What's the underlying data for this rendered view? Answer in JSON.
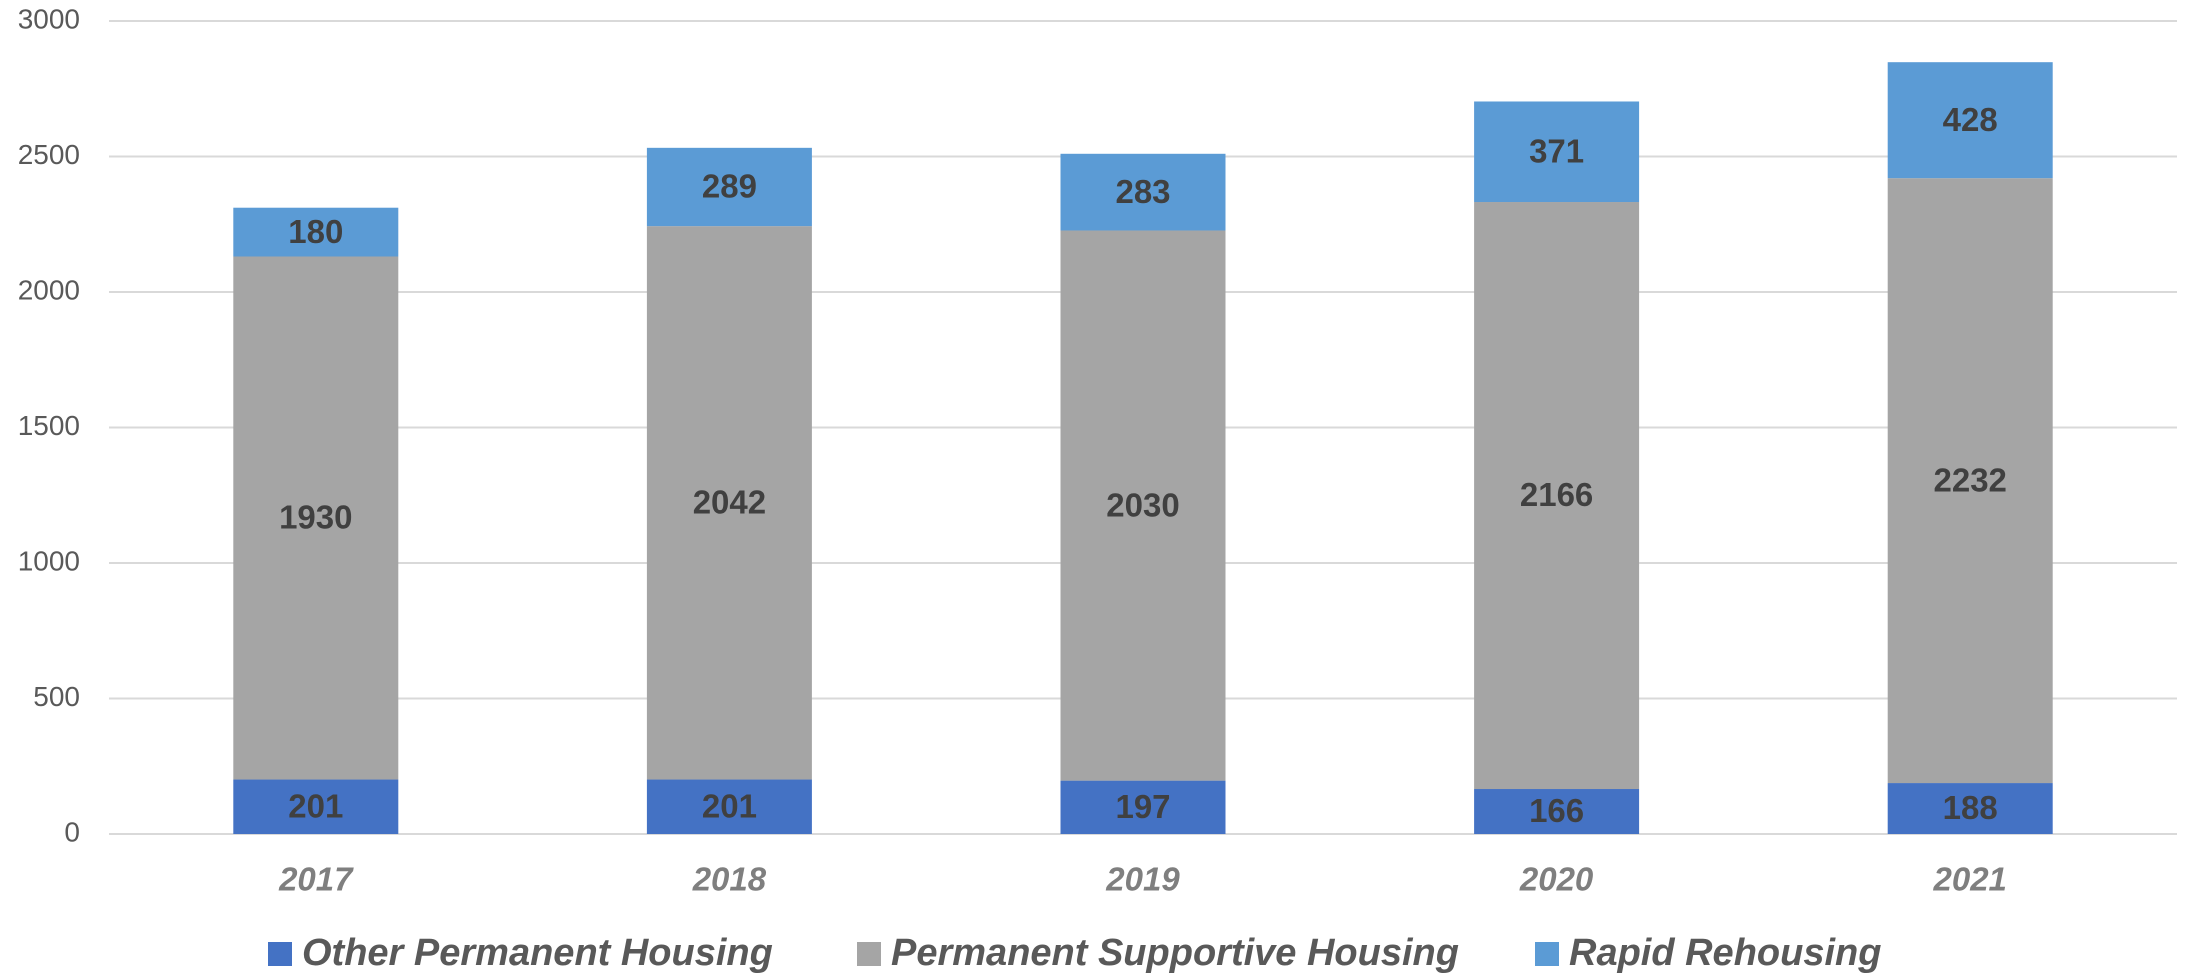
{
  "chart_data": {
    "type": "stacked_bar",
    "categories": [
      "2017",
      "2018",
      "2019",
      "2020",
      "2021"
    ],
    "series": [
      {
        "name": "Other Permanent Housing",
        "color": "#4472c4",
        "values": [
          201,
          201,
          197,
          166,
          188
        ]
      },
      {
        "name": "Permanent Supportive Housing",
        "color": "#a5a5a5",
        "values": [
          1930,
          2042,
          2030,
          2166,
          2232
        ]
      },
      {
        "name": "Rapid Rehousing",
        "color": "#5b9bd5",
        "values": [
          180,
          289,
          283,
          371,
          428
        ]
      }
    ],
    "ylim": [
      0,
      3000
    ],
    "yticks": [
      0,
      500,
      1000,
      1500,
      2000,
      2500,
      3000
    ],
    "grid": true,
    "legend": "bottom"
  }
}
